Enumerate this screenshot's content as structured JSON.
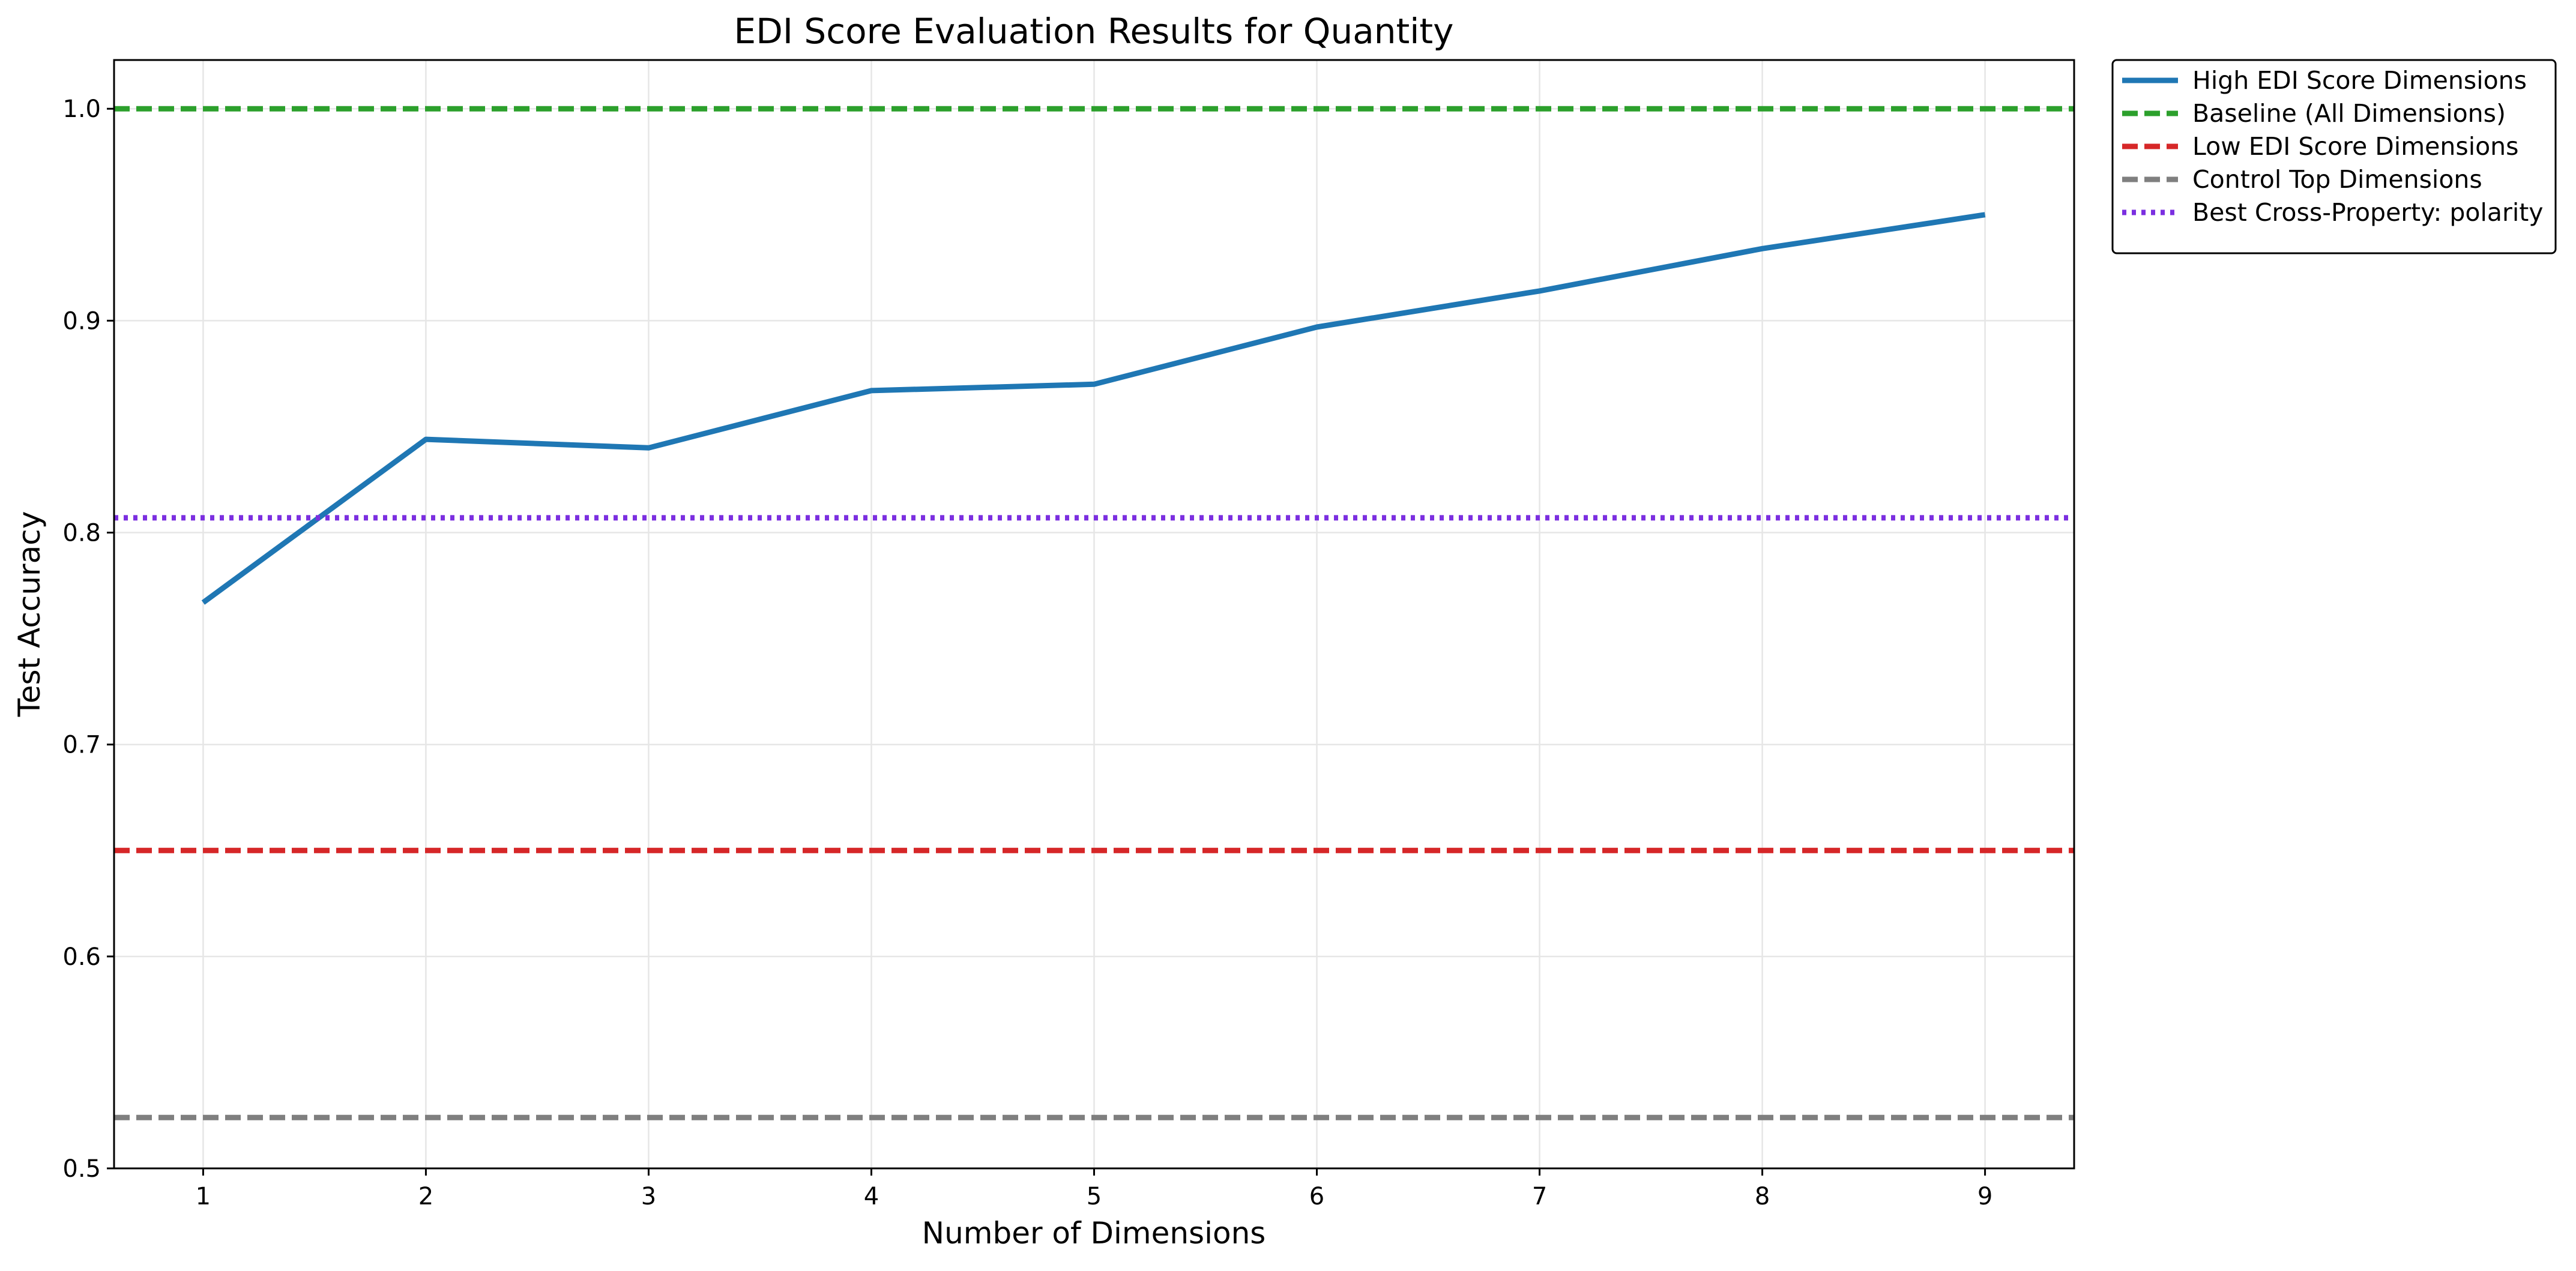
{
  "chart_data": {
    "type": "line",
    "title": "EDI Score Evaluation Results for Quantity",
    "xlabel": "Number of Dimensions",
    "ylabel": "Test Accuracy",
    "xlim": [
      0.6,
      9.4
    ],
    "ylim": [
      0.5,
      1.023
    ],
    "grid": true,
    "legend_position": "outside-top-right",
    "x_ticks": [
      1,
      2,
      3,
      4,
      5,
      6,
      7,
      8,
      9
    ],
    "y_ticks": [
      0.5,
      0.6,
      0.7,
      0.8,
      0.9,
      1.0
    ],
    "y_tick_labels": [
      "0.5",
      "0.6",
      "0.7",
      "0.8",
      "0.9",
      "1.0"
    ],
    "series": [
      {
        "name": "High EDI Score Dimensions",
        "kind": "line",
        "style": "solid",
        "color": "#1f77b4",
        "x": [
          1,
          2,
          3,
          4,
          5,
          6,
          7,
          8,
          9
        ],
        "y": [
          0.767,
          0.844,
          0.84,
          0.867,
          0.87,
          0.897,
          0.914,
          0.934,
          0.95
        ]
      },
      {
        "name": "Baseline (All Dimensions)",
        "kind": "hline",
        "style": "dashed",
        "color": "#2ca02c",
        "y": 1.0
      },
      {
        "name": "Low EDI Score Dimensions",
        "kind": "hline",
        "style": "dashed",
        "color": "#d62728",
        "y": 0.65
      },
      {
        "name": "Control Top Dimensions",
        "kind": "hline",
        "style": "dashed",
        "color": "#7f7f7f",
        "y": 0.524
      },
      {
        "name": "Best Cross-Property: polarity",
        "kind": "hline",
        "style": "dotted",
        "color": "#7b2fe0",
        "y": 0.807
      }
    ]
  }
}
